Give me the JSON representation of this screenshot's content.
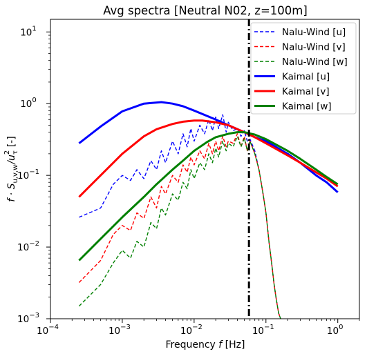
{
  "chart_data": {
    "type": "line",
    "title": "Avg spectra [Neutral N02, z=100m]",
    "xlabel": "Frequency $f$ [Hz]",
    "xlabel_parts": {
      "pre": "Frequency ",
      "var": "f",
      "post": " [Hz]"
    },
    "ylabel": "$f \\cdot S_{u,v,w}/u_\\tau^2$ [-]",
    "ylabel_parts": {
      "main": "f · S",
      "sub": "u,v,w",
      "div": "/u",
      "sub2": "τ",
      "sup2": "2",
      "unit": " [-]"
    },
    "x_scale": "log",
    "y_scale": "log",
    "xlim": [
      0.0001,
      2
    ],
    "ylim": [
      0.001,
      15
    ],
    "x_ticks": [
      {
        "value": 0.0001,
        "base": "10",
        "exp": "−4"
      },
      {
        "value": 0.001,
        "base": "10",
        "exp": "−3"
      },
      {
        "value": 0.01,
        "base": "10",
        "exp": "−2"
      },
      {
        "value": 0.1,
        "base": "10",
        "exp": "−1"
      },
      {
        "value": 1,
        "base": "10",
        "exp": "0"
      }
    ],
    "y_ticks": [
      {
        "value": 0.001,
        "base": "10",
        "exp": "−3"
      },
      {
        "value": 0.01,
        "base": "10",
        "exp": "−2"
      },
      {
        "value": 0.1,
        "base": "10",
        "exp": "−1"
      },
      {
        "value": 1,
        "base": "10",
        "exp": "0"
      },
      {
        "value": 10,
        "base": "10",
        "exp": "1"
      }
    ],
    "grid": false,
    "legend_position": "top-right",
    "vertical_line": {
      "x": 0.058,
      "color": "#000000",
      "style": "dash-dot"
    },
    "series": [
      {
        "name": "Nalu-Wind [u]",
        "color": "#0000ff",
        "style": "dashed",
        "kind": "nalu",
        "x": [
          0.00025,
          0.0005,
          0.00075,
          0.001,
          0.0013,
          0.0016,
          0.002,
          0.0025,
          0.003,
          0.0035,
          0.004,
          0.005,
          0.006,
          0.007,
          0.008,
          0.009,
          0.01,
          0.012,
          0.014,
          0.016,
          0.018,
          0.02,
          0.022,
          0.025,
          0.028,
          0.03,
          0.035,
          0.04,
          0.045,
          0.05,
          0.055,
          0.06,
          0.07,
          0.08,
          0.09,
          0.1,
          0.11,
          0.12,
          0.13,
          0.14,
          0.15,
          0.16
        ],
        "y": [
          0.026,
          0.035,
          0.075,
          0.1,
          0.085,
          0.12,
          0.09,
          0.16,
          0.12,
          0.22,
          0.15,
          0.3,
          0.2,
          0.38,
          0.25,
          0.45,
          0.3,
          0.5,
          0.38,
          0.6,
          0.42,
          0.65,
          0.45,
          0.7,
          0.4,
          0.55,
          0.42,
          0.45,
          0.35,
          0.42,
          0.3,
          0.32,
          0.22,
          0.12,
          0.06,
          0.03,
          0.012,
          0.006,
          0.003,
          0.0018,
          0.0012,
          0.001
        ]
      },
      {
        "name": "Nalu-Wind [v]",
        "color": "#ff0000",
        "style": "dashed",
        "kind": "nalu",
        "x": [
          0.00025,
          0.0005,
          0.00075,
          0.001,
          0.0013,
          0.0016,
          0.002,
          0.0025,
          0.003,
          0.0035,
          0.004,
          0.005,
          0.006,
          0.007,
          0.008,
          0.009,
          0.01,
          0.012,
          0.014,
          0.016,
          0.018,
          0.02,
          0.022,
          0.025,
          0.028,
          0.03,
          0.035,
          0.04,
          0.045,
          0.05,
          0.055,
          0.06,
          0.07,
          0.08,
          0.09,
          0.1,
          0.11,
          0.12,
          0.13,
          0.14,
          0.15,
          0.16
        ],
        "y": [
          0.0032,
          0.0065,
          0.015,
          0.02,
          0.017,
          0.03,
          0.025,
          0.05,
          0.035,
          0.07,
          0.055,
          0.1,
          0.08,
          0.14,
          0.11,
          0.18,
          0.14,
          0.22,
          0.17,
          0.28,
          0.2,
          0.3,
          0.22,
          0.35,
          0.25,
          0.3,
          0.28,
          0.38,
          0.25,
          0.35,
          0.22,
          0.3,
          0.2,
          0.12,
          0.06,
          0.03,
          0.012,
          0.006,
          0.003,
          0.0018,
          0.0012,
          0.001
        ]
      },
      {
        "name": "Nalu-Wind [w]",
        "color": "#008000",
        "style": "dashed",
        "kind": "nalu",
        "x": [
          0.00025,
          0.0005,
          0.00075,
          0.001,
          0.0013,
          0.0016,
          0.002,
          0.0025,
          0.003,
          0.0035,
          0.004,
          0.005,
          0.006,
          0.007,
          0.008,
          0.009,
          0.01,
          0.012,
          0.014,
          0.016,
          0.018,
          0.02,
          0.022,
          0.025,
          0.028,
          0.03,
          0.035,
          0.04,
          0.045,
          0.05,
          0.055,
          0.06,
          0.07,
          0.08,
          0.09,
          0.1,
          0.11,
          0.12,
          0.13,
          0.14,
          0.15,
          0.16
        ],
        "y": [
          0.0015,
          0.003,
          0.006,
          0.009,
          0.007,
          0.012,
          0.01,
          0.022,
          0.018,
          0.035,
          0.028,
          0.055,
          0.045,
          0.08,
          0.065,
          0.12,
          0.09,
          0.15,
          0.12,
          0.2,
          0.15,
          0.24,
          0.18,
          0.3,
          0.22,
          0.28,
          0.25,
          0.35,
          0.25,
          0.33,
          0.22,
          0.3,
          0.2,
          0.12,
          0.06,
          0.03,
          0.012,
          0.006,
          0.003,
          0.0018,
          0.0012,
          0.001
        ]
      },
      {
        "name": "Kaimal [u]",
        "color": "#0000ff",
        "style": "solid",
        "kind": "kaimal",
        "x": [
          0.00025,
          0.0005,
          0.001,
          0.002,
          0.0035,
          0.005,
          0.007,
          0.01,
          0.02,
          0.03,
          0.05,
          0.07,
          0.1,
          0.2,
          0.3,
          0.5,
          0.7,
          1.0
        ],
        "y": [
          0.28,
          0.48,
          0.78,
          1.0,
          1.05,
          1.0,
          0.92,
          0.8,
          0.6,
          0.5,
          0.4,
          0.34,
          0.3,
          0.2,
          0.15,
          0.1,
          0.08,
          0.058
        ]
      },
      {
        "name": "Kaimal [v]",
        "color": "#ff0000",
        "style": "solid",
        "kind": "kaimal",
        "x": [
          0.00025,
          0.0005,
          0.001,
          0.002,
          0.003,
          0.005,
          0.007,
          0.01,
          0.013,
          0.02,
          0.03,
          0.05,
          0.07,
          0.1,
          0.2,
          0.3,
          0.5,
          0.7,
          1.0
        ],
        "y": [
          0.05,
          0.1,
          0.2,
          0.35,
          0.44,
          0.52,
          0.56,
          0.58,
          0.58,
          0.55,
          0.5,
          0.4,
          0.34,
          0.28,
          0.19,
          0.15,
          0.11,
          0.09,
          0.07
        ]
      },
      {
        "name": "Kaimal [w]",
        "color": "#008000",
        "style": "solid",
        "kind": "kaimal",
        "x": [
          0.00025,
          0.0005,
          0.001,
          0.002,
          0.003,
          0.005,
          0.007,
          0.01,
          0.015,
          0.02,
          0.03,
          0.04,
          0.05,
          0.07,
          0.1,
          0.2,
          0.3,
          0.5,
          0.7,
          1.0
        ],
        "y": [
          0.0065,
          0.013,
          0.026,
          0.05,
          0.075,
          0.12,
          0.16,
          0.22,
          0.29,
          0.34,
          0.38,
          0.4,
          0.4,
          0.37,
          0.32,
          0.22,
          0.17,
          0.12,
          0.095,
          0.075
        ]
      }
    ]
  }
}
